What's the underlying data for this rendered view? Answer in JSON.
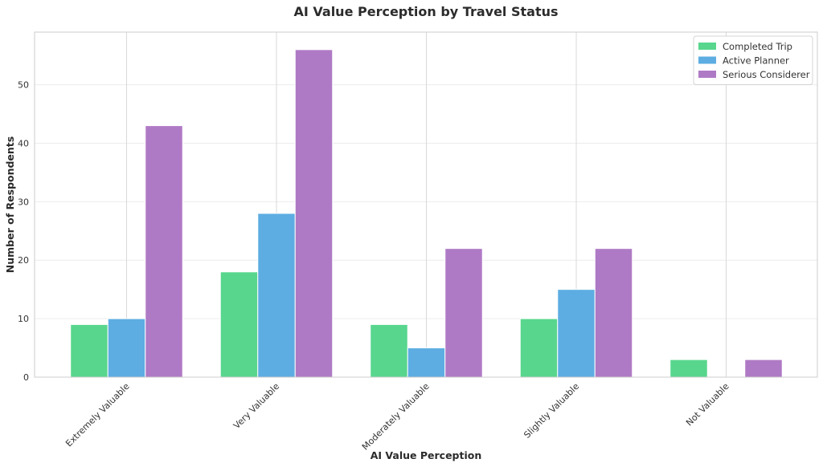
{
  "chart_data": {
    "type": "bar",
    "title": "AI Value Perception by Travel Status",
    "xlabel": "AI Value Perception",
    "ylabel": "Number of Respondents",
    "categories": [
      "Extremely Valuable",
      "Very Valuable",
      "Moderately Valuable",
      "Slightly Valuable",
      "Not Valuable"
    ],
    "series": [
      {
        "name": "Completed Trip",
        "color": "#58d68d",
        "values": [
          9,
          18,
          9,
          10,
          3
        ]
      },
      {
        "name": "Active Planner",
        "color": "#5dade2",
        "values": [
          10,
          28,
          5,
          15,
          0
        ]
      },
      {
        "name": "Serious Considerer",
        "color": "#af7ac5",
        "values": [
          43,
          56,
          22,
          22,
          3
        ]
      }
    ],
    "ylim": [
      0,
      59
    ],
    "yticks": [
      0,
      10,
      20,
      30,
      40,
      50
    ],
    "grid": true,
    "legend_position": "top-right"
  }
}
